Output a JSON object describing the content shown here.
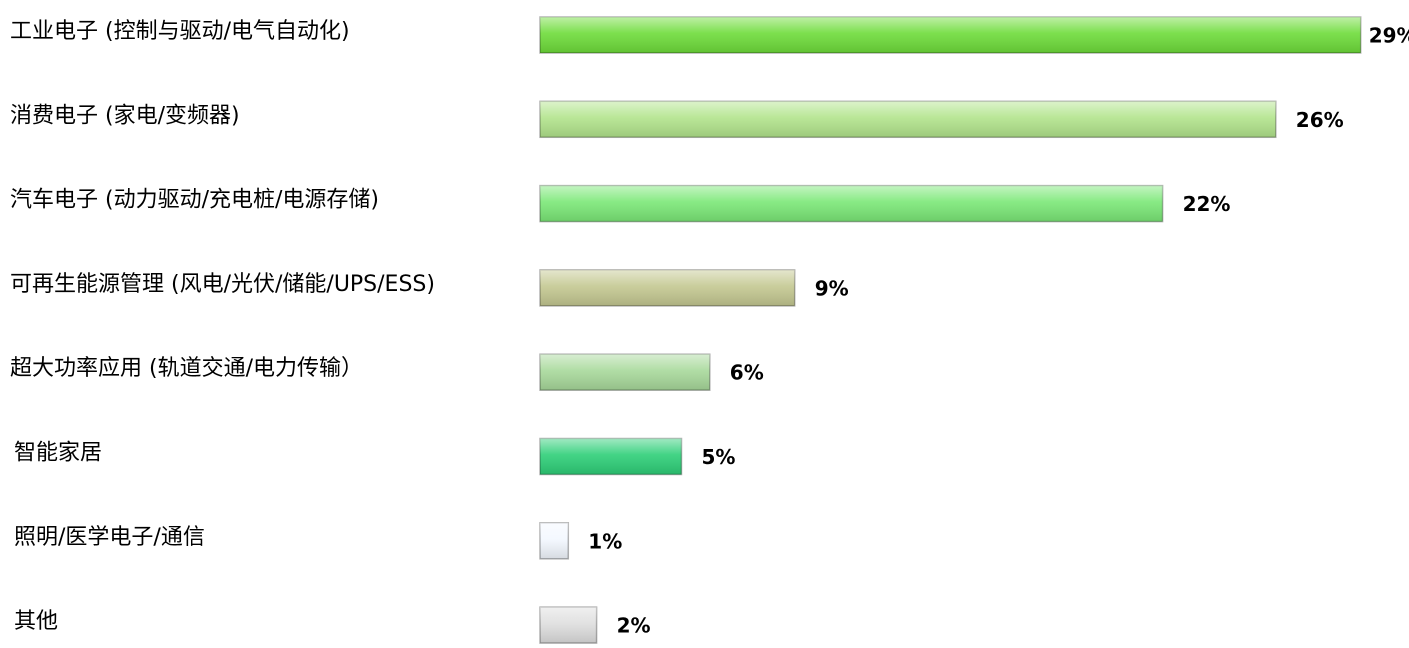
{
  "chart_data": {
    "type": "bar",
    "orientation": "horizontal",
    "categories": [
      "工业电子 (控制与驱动/电气自动化)",
      "消费电子 (家电/变频器)",
      "汽车电子 (动力驱动/充电桩/电源存储)",
      "可再生能源管理 (风电/光伏/储能/UPS/ESS)",
      "超大功率应用 (轨道交通/电力传输）",
      "智能家居",
      "照明/医学电子/通信",
      "其他"
    ],
    "values": [
      29,
      26,
      22,
      9,
      6,
      5,
      1,
      2
    ],
    "value_labels": [
      "29%",
      "26%",
      "22%",
      "9%",
      "6%",
      "5%",
      "1%",
      "2%"
    ],
    "colors": [
      "#6edc3a",
      "#b2e48c",
      "#7be877",
      "#c4c891",
      "#a8d99b",
      "#2ecf78",
      "#f3f8ff",
      "#dedede"
    ]
  }
}
